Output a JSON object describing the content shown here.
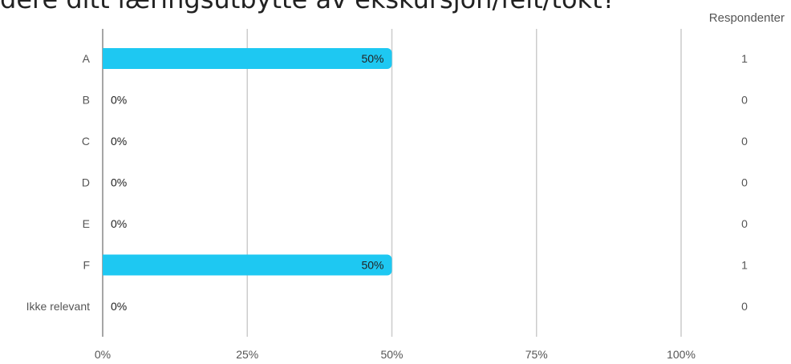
{
  "title": "dere ditt læringsutbytte av ekskursjon/felt/tokt?",
  "respondents_header": "Respondenter",
  "colors": {
    "bar": "#1ec8f2",
    "grid": "#cccccc",
    "axis": "#888888",
    "label": "#555555",
    "value": "#222222"
  },
  "chart_data": {
    "type": "bar",
    "orientation": "horizontal",
    "categories": [
      "A",
      "B",
      "C",
      "D",
      "E",
      "F",
      "Ikke relevant"
    ],
    "values": [
      50,
      0,
      0,
      0,
      0,
      50,
      0
    ],
    "value_labels": [
      "50%",
      "0%",
      "0%",
      "0%",
      "0%",
      "50%",
      "0%"
    ],
    "respondents": [
      1,
      0,
      0,
      0,
      0,
      1,
      0
    ],
    "xlim": [
      0,
      100
    ],
    "xticks": [
      "0%",
      "25%",
      "50%",
      "75%",
      "100%"
    ],
    "grid": true
  }
}
